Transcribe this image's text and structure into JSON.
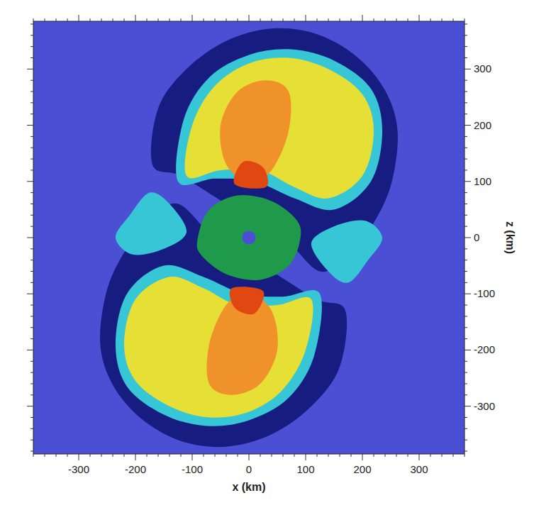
{
  "chart_data": {
    "type": "image",
    "x_label": "x (km)",
    "y_label": "z (km)",
    "xlim": [
      -380,
      380
    ],
    "ylim": [
      -385,
      385
    ],
    "xticks": [
      -300,
      -200,
      -100,
      0,
      100,
      200,
      300
    ],
    "yticks": [
      -300,
      -200,
      -100,
      0,
      100,
      200,
      300
    ],
    "color": "#4a4fd4",
    "shapes": [
      {
        "color": "#161c80",
        "points": [
          [
            -170,
            130
          ],
          [
            -160,
            230
          ],
          [
            -110,
            300
          ],
          [
            -40,
            350
          ],
          [
            40,
            372
          ],
          [
            120,
            362
          ],
          [
            190,
            322
          ],
          [
            240,
            262
          ],
          [
            262,
            190
          ],
          [
            252,
            100
          ],
          [
            222,
            30
          ],
          [
            175,
            -30
          ],
          [
            125,
            -60
          ],
          [
            60,
            0
          ],
          [
            -40,
            60
          ],
          [
            -120,
            110
          ]
        ]
      },
      {
        "color": "#161c80",
        "points": [
          [
            170,
            -130
          ],
          [
            160,
            -230
          ],
          [
            110,
            -300
          ],
          [
            40,
            -350
          ],
          [
            -40,
            -372
          ],
          [
            -120,
            -362
          ],
          [
            -190,
            -322
          ],
          [
            -240,
            -262
          ],
          [
            -262,
            -190
          ],
          [
            -252,
            -100
          ],
          [
            -222,
            -30
          ],
          [
            -175,
            30
          ],
          [
            -125,
            60
          ],
          [
            -60,
            0
          ],
          [
            40,
            -60
          ],
          [
            120,
            -110
          ]
        ]
      },
      {
        "color": "#36c6d6",
        "points": [
          [
            -210,
            40
          ],
          [
            -235,
            0
          ],
          [
            -205,
            -30
          ],
          [
            -150,
            -20
          ],
          [
            -110,
            10
          ],
          [
            -140,
            60
          ],
          [
            -175,
            80
          ]
        ]
      },
      {
        "color": "#36c6d6",
        "points": [
          [
            210,
            -40
          ],
          [
            235,
            0
          ],
          [
            205,
            30
          ],
          [
            150,
            20
          ],
          [
            110,
            -10
          ],
          [
            140,
            -60
          ],
          [
            175,
            -80
          ]
        ]
      },
      {
        "color": "#36c6d6",
        "points": [
          [
            -125,
            100
          ],
          [
            -115,
            210
          ],
          [
            -70,
            285
          ],
          [
            0,
            325
          ],
          [
            75,
            335
          ],
          [
            150,
            315
          ],
          [
            215,
            265
          ],
          [
            235,
            190
          ],
          [
            215,
            100
          ],
          [
            150,
            50
          ],
          [
            80,
            70
          ],
          [
            10,
            100
          ],
          [
            -60,
            105
          ]
        ]
      },
      {
        "color": "#36c6d6",
        "points": [
          [
            125,
            -100
          ],
          [
            115,
            -210
          ],
          [
            70,
            -285
          ],
          [
            0,
            -325
          ],
          [
            -75,
            -335
          ],
          [
            -150,
            -315
          ],
          [
            -215,
            -265
          ],
          [
            -235,
            -190
          ],
          [
            -215,
            -100
          ],
          [
            -150,
            -50
          ],
          [
            -80,
            -70
          ],
          [
            -10,
            -100
          ],
          [
            60,
            -105
          ]
        ]
      },
      {
        "color": "#e6df35",
        "points": [
          [
            -110,
            110
          ],
          [
            -100,
            200
          ],
          [
            -60,
            270
          ],
          [
            0,
            310
          ],
          [
            70,
            320
          ],
          [
            140,
            300
          ],
          [
            200,
            255
          ],
          [
            220,
            190
          ],
          [
            200,
            110
          ],
          [
            140,
            70
          ],
          [
            80,
            90
          ],
          [
            20,
            120
          ],
          [
            -50,
            120
          ]
        ]
      },
      {
        "color": "#e6df35",
        "points": [
          [
            110,
            -110
          ],
          [
            100,
            -200
          ],
          [
            60,
            -270
          ],
          [
            0,
            -310
          ],
          [
            -70,
            -320
          ],
          [
            -140,
            -300
          ],
          [
            -200,
            -255
          ],
          [
            -220,
            -190
          ],
          [
            -200,
            -110
          ],
          [
            -140,
            -70
          ],
          [
            -80,
            -90
          ],
          [
            -20,
            -120
          ],
          [
            50,
            -120
          ]
        ]
      },
      {
        "color": "#f0922a",
        "points": [
          [
            -40,
            130
          ],
          [
            -50,
            200
          ],
          [
            -20,
            260
          ],
          [
            30,
            280
          ],
          [
            70,
            260
          ],
          [
            70,
            190
          ],
          [
            40,
            120
          ],
          [
            0,
            100
          ]
        ]
      },
      {
        "color": "#f0922a",
        "points": [
          [
            40,
            -130
          ],
          [
            50,
            -200
          ],
          [
            20,
            -260
          ],
          [
            -30,
            -280
          ],
          [
            -70,
            -260
          ],
          [
            -70,
            -190
          ],
          [
            -40,
            -120
          ],
          [
            0,
            -100
          ]
        ]
      },
      {
        "color": "#e04812",
        "points": [
          [
            -25,
            95
          ],
          [
            -10,
            135
          ],
          [
            25,
            125
          ],
          [
            30,
            90
          ]
        ]
      },
      {
        "color": "#e04812",
        "points": [
          [
            25,
            -95
          ],
          [
            10,
            -135
          ],
          [
            -25,
            -125
          ],
          [
            -30,
            -90
          ]
        ]
      },
      {
        "color": "#1f9a4a",
        "points": [
          [
            -90,
            0
          ],
          [
            -70,
            50
          ],
          [
            -20,
            75
          ],
          [
            40,
            65
          ],
          [
            85,
            30
          ],
          [
            90,
            -5
          ],
          [
            70,
            -50
          ],
          [
            20,
            -75
          ],
          [
            -40,
            -65
          ],
          [
            -85,
            -30
          ]
        ]
      },
      {
        "color": "#4a4fd4",
        "points": [
          [
            12,
            0
          ],
          [
            8.5,
            8.5
          ],
          [
            0,
            12
          ],
          [
            -8.5,
            8.5
          ],
          [
            -12,
            0
          ],
          [
            -8.5,
            -8.5
          ],
          [
            0,
            -12
          ],
          [
            8.5,
            -8.5
          ]
        ]
      }
    ]
  }
}
